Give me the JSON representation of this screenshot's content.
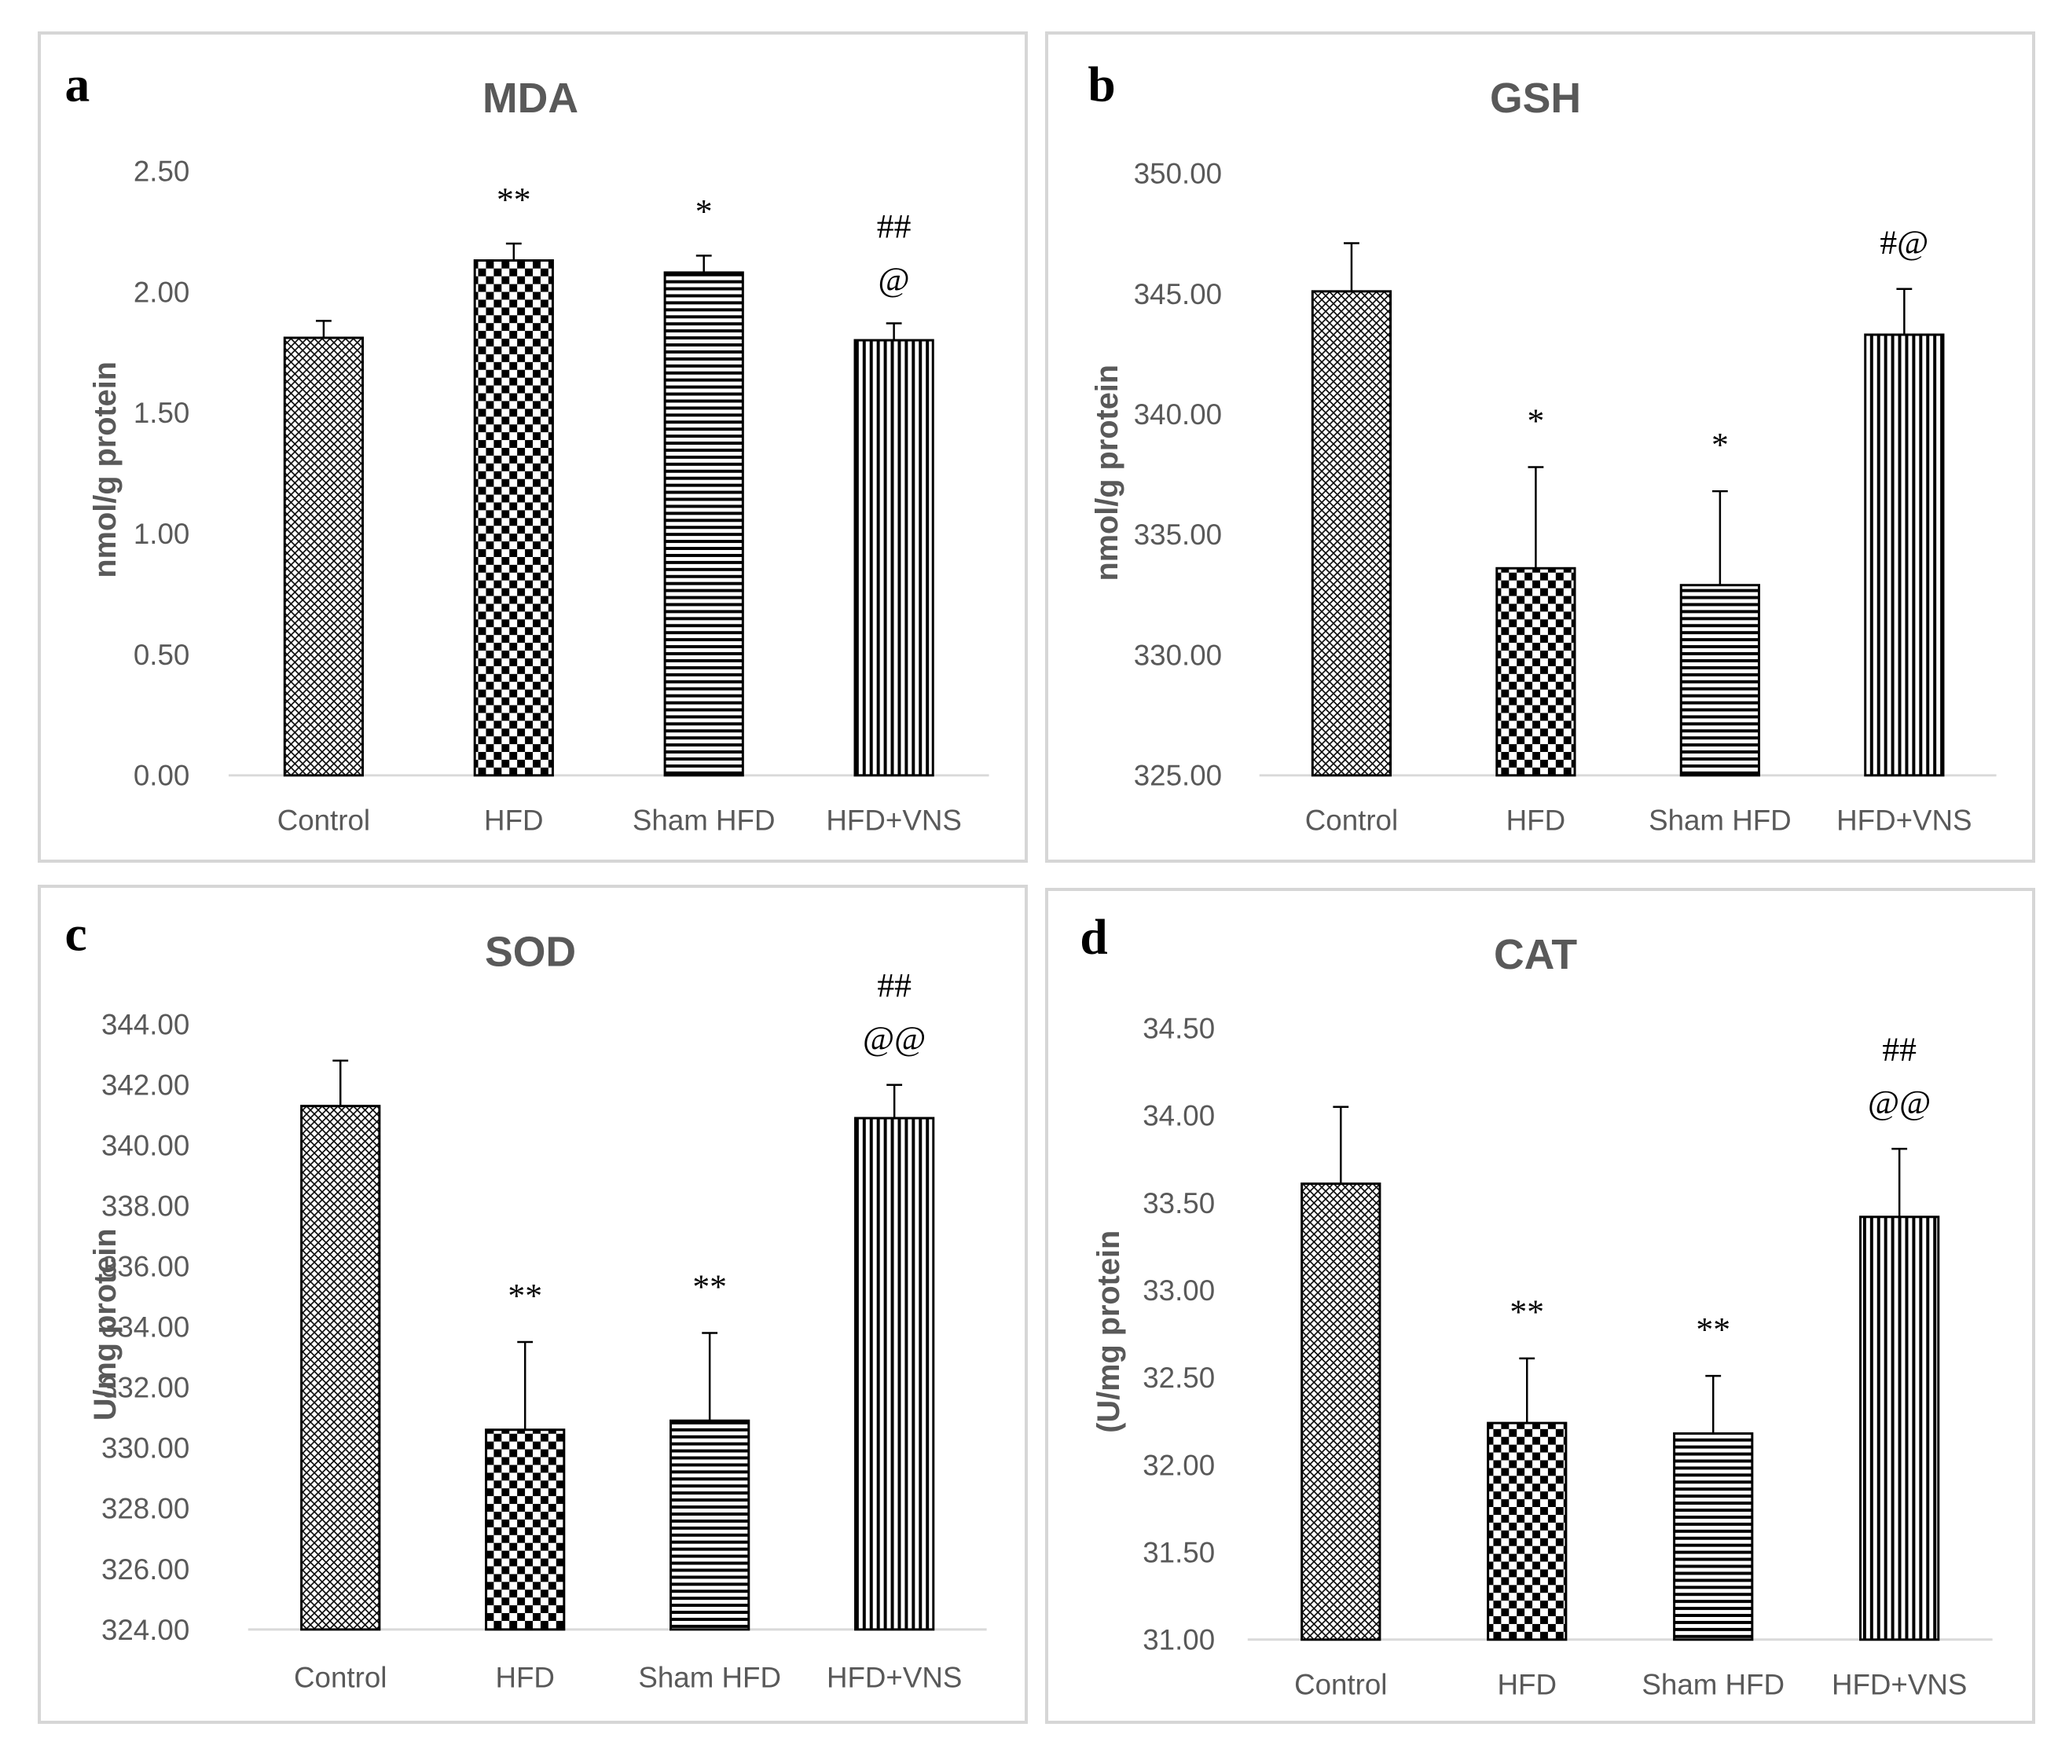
{
  "colors": {
    "bar_fill": "#ffffff",
    "bar_stroke": "#000000",
    "axis": "#d9d9d9",
    "text": "#595959",
    "pattern": "#000000"
  },
  "chart_data": [
    {
      "panel": "a",
      "type": "bar",
      "title": "MDA",
      "ylabel": "nmol/g protein",
      "xlabel": "",
      "categories": [
        "Control",
        "HFD",
        "Sham HFD",
        "HFD+VNS"
      ],
      "values": [
        1.81,
        2.13,
        2.08,
        1.8
      ],
      "errors": [
        0.07,
        0.07,
        0.07,
        0.07
      ],
      "patterns": [
        "crosshatch",
        "checker",
        "hstripe",
        "vstripe"
      ],
      "annotations": [
        [],
        [
          "**"
        ],
        [
          "*"
        ],
        [
          "##",
          "@"
        ]
      ],
      "ylim": [
        0,
        2.5
      ],
      "yticks": [
        0,
        0.5,
        1,
        1.5,
        2,
        2.5
      ],
      "yticklabels": [
        "0.00",
        "0.50",
        "1.00",
        "1.50",
        "2.00",
        "2.50"
      ],
      "grid": false,
      "legend": "none"
    },
    {
      "panel": "b",
      "type": "bar",
      "title": "GSH",
      "ylabel": "nmol/g protein",
      "xlabel": "",
      "categories": [
        "Control",
        "HFD",
        "Sham HFD",
        "HFD+VNS"
      ],
      "values": [
        345.1,
        333.6,
        332.9,
        343.3
      ],
      "errors": [
        2.0,
        4.2,
        3.9,
        1.9
      ],
      "patterns": [
        "crosshatch",
        "checker",
        "hstripe",
        "vstripe"
      ],
      "annotations": [
        [],
        [
          "*"
        ],
        [
          "*"
        ],
        [
          "#@"
        ]
      ],
      "ylim": [
        325,
        350
      ],
      "yticks": [
        325,
        330,
        335,
        340,
        345,
        350
      ],
      "yticklabels": [
        "325.00",
        "330.00",
        "335.00",
        "340.00",
        "345.00",
        "350.00"
      ],
      "grid": false,
      "legend": "none"
    },
    {
      "panel": "c",
      "type": "bar",
      "title": "SOD",
      "ylabel": "U/mg protein",
      "xlabel": "",
      "categories": [
        "Control",
        "HFD",
        "Sham HFD",
        "HFD+VNS"
      ],
      "values": [
        341.3,
        330.6,
        330.9,
        340.9
      ],
      "errors": [
        1.5,
        2.9,
        2.9,
        1.1
      ],
      "patterns": [
        "crosshatch",
        "checker",
        "hstripe",
        "vstripe"
      ],
      "annotations": [
        [],
        [
          "**"
        ],
        [
          "**"
        ],
        [
          "##",
          "@@"
        ]
      ],
      "ylim": [
        324,
        344
      ],
      "yticks": [
        324,
        326,
        328,
        330,
        332,
        334,
        336,
        338,
        340,
        342,
        344
      ],
      "yticklabels": [
        "324.00",
        "326.00",
        "328.00",
        "330.00",
        "332.00",
        "334.00",
        "336.00",
        "338.00",
        "340.00",
        "342.00",
        "344.00"
      ],
      "grid": false,
      "legend": "none"
    },
    {
      "panel": "d",
      "type": "bar",
      "title": "CAT",
      "ylabel": "(U/mg protein",
      "xlabel": "",
      "categories": [
        "Control",
        "HFD",
        "Sham HFD",
        "HFD+VNS"
      ],
      "values": [
        33.61,
        32.24,
        32.18,
        33.42
      ],
      "errors": [
        0.44,
        0.37,
        0.33,
        0.39
      ],
      "patterns": [
        "crosshatch",
        "checker",
        "hstripe",
        "vstripe"
      ],
      "annotations": [
        [],
        [
          "**"
        ],
        [
          "**"
        ],
        [
          "##",
          "@@"
        ]
      ],
      "ylim": [
        31,
        34.5
      ],
      "yticks": [
        31,
        31.5,
        32,
        32.5,
        33,
        33.5,
        34,
        34.5
      ],
      "yticklabels": [
        "31.00",
        "31.50",
        "32.00",
        "32.50",
        "33.00",
        "33.50",
        "34.00",
        "34.50"
      ],
      "grid": false,
      "legend": "none"
    }
  ]
}
